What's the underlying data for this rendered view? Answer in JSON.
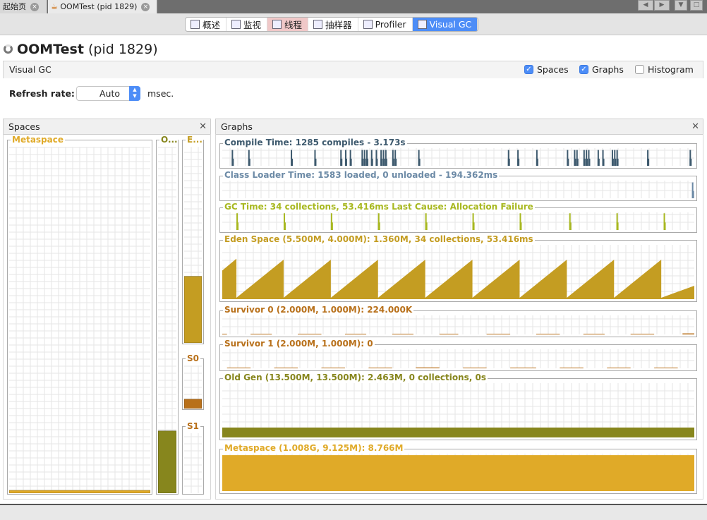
{
  "doc_tabs": [
    {
      "label": "起始页"
    },
    {
      "label": "OOMTest (pid 1829)"
    }
  ],
  "toolbar": {
    "tabs": [
      {
        "label": "概述",
        "icon": "overview-icon"
      },
      {
        "label": "监视",
        "icon": "monitor-icon"
      },
      {
        "label": "线程",
        "icon": "threads-icon"
      },
      {
        "label": "抽样器",
        "icon": "sampler-icon"
      },
      {
        "label": "Profiler",
        "icon": "profiler-clock-icon"
      },
      {
        "label": "Visual GC",
        "icon": "visual-gc-icon",
        "selected": true
      }
    ]
  },
  "header": {
    "app": "OOMTest",
    "pid": "(pid 1829)"
  },
  "visual_gc": {
    "title": "Visual GC",
    "options": [
      {
        "label": "Spaces",
        "checked": true
      },
      {
        "label": "Graphs",
        "checked": true
      },
      {
        "label": "Histogram",
        "checked": false
      }
    ]
  },
  "refresh": {
    "label": "Refresh rate:",
    "value": "Auto",
    "unit": "msec."
  },
  "spaces": {
    "title": "Spaces",
    "items": [
      {
        "label": "Metaspace",
        "fill": 0.0085,
        "color": "#e0aa28"
      },
      {
        "label": "O...",
        "fill": 0.18,
        "color": "#87861d"
      },
      {
        "label": "E...",
        "fill": 0.34,
        "color": "#c49d22"
      },
      {
        "label": "S0",
        "fill": 0.22,
        "color": "#b8701a"
      },
      {
        "label": "S1",
        "fill": 0,
        "color": "#b8701a"
      }
    ]
  },
  "graphs": {
    "title": "Graphs",
    "items": [
      {
        "title": "Compile Time: 1285 compiles - 3.173s",
        "color": "#3e5a6e",
        "type": "spikes",
        "samples": 200,
        "spikes": [
          [
            4,
            0.9
          ],
          [
            11,
            0.9
          ],
          [
            29,
            0.9
          ],
          [
            39,
            0.9
          ],
          [
            50,
            0.9
          ],
          [
            52,
            0.9
          ],
          [
            54,
            0.9
          ],
          [
            59,
            0.9
          ],
          [
            60,
            0.9
          ],
          [
            61,
            0.9
          ],
          [
            63,
            0.9
          ],
          [
            65,
            0.9
          ],
          [
            67,
            0.9
          ],
          [
            68,
            0.9
          ],
          [
            69,
            0.9
          ],
          [
            72,
            0.9
          ],
          [
            73,
            0.9
          ],
          [
            83,
            0.9
          ],
          [
            121,
            0.9
          ],
          [
            125,
            0.9
          ],
          [
            133,
            0.9
          ],
          [
            146,
            0.9
          ],
          [
            149,
            0.9
          ],
          [
            150,
            0.9
          ],
          [
            153,
            0.9
          ],
          [
            154,
            0.9
          ],
          [
            155,
            0.9
          ],
          [
            159,
            0.9
          ],
          [
            161,
            0.9
          ],
          [
            165,
            0.9
          ],
          [
            166,
            0.9
          ],
          [
            167,
            0.9
          ],
          [
            180,
            0.9
          ],
          [
            198,
            0.9
          ]
        ]
      },
      {
        "title": "Class Loader Time: 1583 loaded, 0 unloaded - 194.362ms",
        "color": "#6c8aa6",
        "type": "spikes",
        "samples": 200,
        "spikes": [
          [
            199,
            0.9
          ]
        ]
      },
      {
        "title": "GC Time: 34 collections, 53.416ms Last Cause: Allocation Failure",
        "color": "#a8b820",
        "type": "spikes",
        "samples": 200,
        "spikes": [
          [
            6,
            0.95
          ],
          [
            26,
            0.95
          ],
          [
            46,
            0.95
          ],
          [
            66,
            0.95
          ],
          [
            86,
            0.95
          ],
          [
            106,
            0.95
          ],
          [
            126,
            0.95
          ],
          [
            147,
            0.95
          ],
          [
            167,
            0.95
          ],
          [
            187,
            0.95
          ]
        ]
      },
      {
        "title": "Eden Space (5.500M, 4.000M): 1.360M, 34 collections, 53.416ms",
        "color": "#c49d22",
        "type": "sawtooth",
        "max_mb": 5.5,
        "capacity_mb": 4.0,
        "samples": 200,
        "start_mb": 2.9,
        "gc_at": [
          6,
          26,
          46,
          66,
          86,
          106,
          126,
          146,
          166,
          186
        ],
        "end_mb": 1.36
      },
      {
        "title": "Survivor 0 (2.000M, 1.000M): 224.000K",
        "color": "#b8701a",
        "type": "segments",
        "max_mb": 2.0,
        "samples": 200,
        "segments": [
          [
            0,
            2,
            0.02
          ],
          [
            12,
            21,
            0.02
          ],
          [
            32,
            42,
            0.05
          ],
          [
            52,
            61,
            0.02
          ],
          [
            72,
            81,
            0.02
          ],
          [
            92,
            100,
            0.02
          ],
          [
            112,
            122,
            0.02
          ],
          [
            133,
            143,
            0.02
          ],
          [
            153,
            162,
            0.02
          ],
          [
            173,
            183,
            0.02
          ],
          [
            195,
            200,
            0.11
          ]
        ]
      },
      {
        "title": "Survivor 1 (2.000M, 1.000M): 0",
        "color": "#b8701a",
        "type": "segments",
        "max_mb": 2.0,
        "samples": 200,
        "segments": [
          [
            2,
            12,
            0.02
          ],
          [
            22,
            32,
            0.02
          ],
          [
            42,
            52,
            0.02
          ],
          [
            62,
            72,
            0.02
          ],
          [
            82,
            92,
            0.09
          ],
          [
            102,
            112,
            0.02
          ],
          [
            122,
            133,
            0.07
          ],
          [
            143,
            153,
            0.02
          ],
          [
            163,
            173,
            0.02
          ],
          [
            183,
            193,
            0.02
          ]
        ]
      },
      {
        "title": "Old Gen (13.500M, 13.500M): 2.463M, 0 collections, 0s",
        "color": "#87861d",
        "type": "constant",
        "max_mb": 13.5,
        "value_mb": 2.463
      },
      {
        "title": "Metaspace (1.008G, 9.125M): 8.766M",
        "color": "#e0aa28",
        "type": "constant",
        "max_mb": 9.125,
        "value_mb": 8.766
      }
    ]
  }
}
